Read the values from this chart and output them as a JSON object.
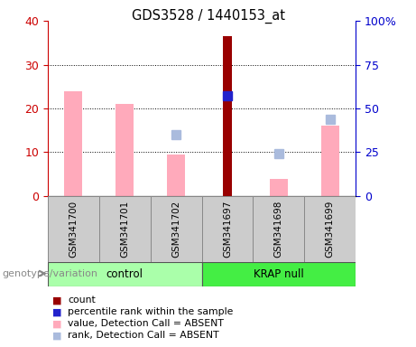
{
  "title": "GDS3528 / 1440153_at",
  "samples": [
    "GSM341700",
    "GSM341701",
    "GSM341702",
    "GSM341697",
    "GSM341698",
    "GSM341699"
  ],
  "pink_bar_values": [
    24,
    21,
    9.5,
    null,
    4,
    16
  ],
  "dark_red_bar_values": [
    null,
    null,
    null,
    36.5,
    null,
    null
  ],
  "blue_square_pct": [
    null,
    null,
    null,
    57,
    null,
    null
  ],
  "light_blue_square_pct": [
    null,
    null,
    35,
    null,
    24,
    44
  ],
  "ylim": [
    0,
    40
  ],
  "y2lim": [
    0,
    100
  ],
  "yticks": [
    0,
    10,
    20,
    30,
    40
  ],
  "y2ticks": [
    0,
    25,
    50,
    75,
    100
  ],
  "y2ticklabels": [
    "0",
    "25",
    "50",
    "75",
    "100%"
  ],
  "left_tick_color": "#cc0000",
  "right_tick_color": "#0000cc",
  "pink_color": "#ffaabb",
  "dark_red_color": "#990000",
  "blue_color": "#2222cc",
  "light_blue_color": "#aabbdd",
  "control_group_color": "#aaffaa",
  "krap_group_color": "#44ee44",
  "sample_box_color": "#cccccc",
  "bar_width": 0.35,
  "marker_size": 7
}
